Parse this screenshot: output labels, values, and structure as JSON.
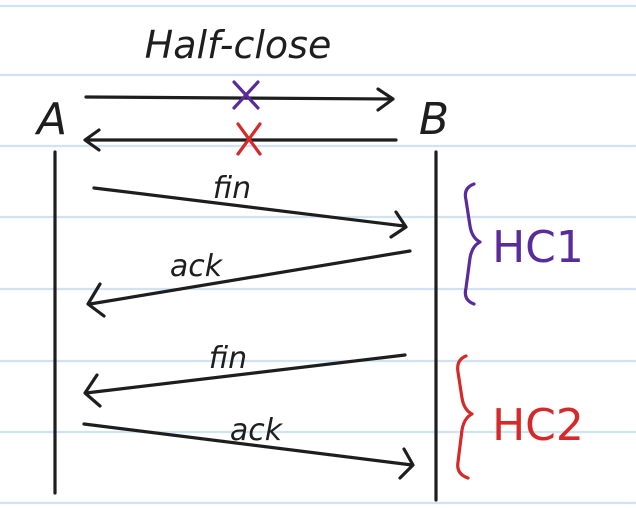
{
  "diagram": {
    "title": "Half-close",
    "nodes": {
      "left": "A",
      "right": "B"
    },
    "messages": [
      {
        "label": "fin",
        "direction": "A-to-B",
        "group": "HC1"
      },
      {
        "label": "ack",
        "direction": "B-to-A",
        "group": "HC1"
      },
      {
        "label": "fin",
        "direction": "B-to-A",
        "group": "HC2"
      },
      {
        "label": "ack",
        "direction": "A-to-B",
        "group": "HC2"
      }
    ],
    "groups": [
      {
        "label": "HC1",
        "color": "#5a2b9b"
      },
      {
        "label": "HC2",
        "color": "#d62a2a"
      }
    ],
    "cross_marks": [
      {
        "on": "A-to-B",
        "color": "#5a2b9b"
      },
      {
        "on": "B-to-A",
        "color": "#d62a2a"
      }
    ]
  }
}
